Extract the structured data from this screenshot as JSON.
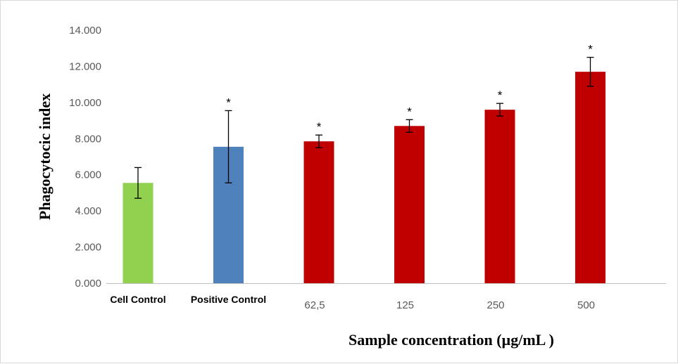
{
  "chart_data": {
    "type": "bar",
    "title": "",
    "xlabel": "Sample concentration (µg/mL )",
    "ylabel": "Phagocytocic index",
    "ylim": [
      0,
      14
    ],
    "yticks": [
      "0.000",
      "2.000",
      "4.000",
      "6.000",
      "8.000",
      "10.000",
      "12.000",
      "14.000"
    ],
    "grid": false,
    "categories": [
      "Cell Control",
      "Positive Control",
      "62,5",
      "125",
      "250",
      "500"
    ],
    "category_bold": [
      true,
      true,
      false,
      false,
      false,
      false
    ],
    "values": [
      5.55,
      7.55,
      7.85,
      8.7,
      9.6,
      11.7
    ],
    "errors": [
      0.85,
      2.0,
      0.35,
      0.35,
      0.35,
      0.8
    ],
    "significance": [
      "",
      "*",
      "*",
      "*",
      "*",
      "*"
    ],
    "colors": [
      "#92d050",
      "#4f81bd",
      "#c00000",
      "#c00000",
      "#c00000",
      "#c00000"
    ]
  }
}
